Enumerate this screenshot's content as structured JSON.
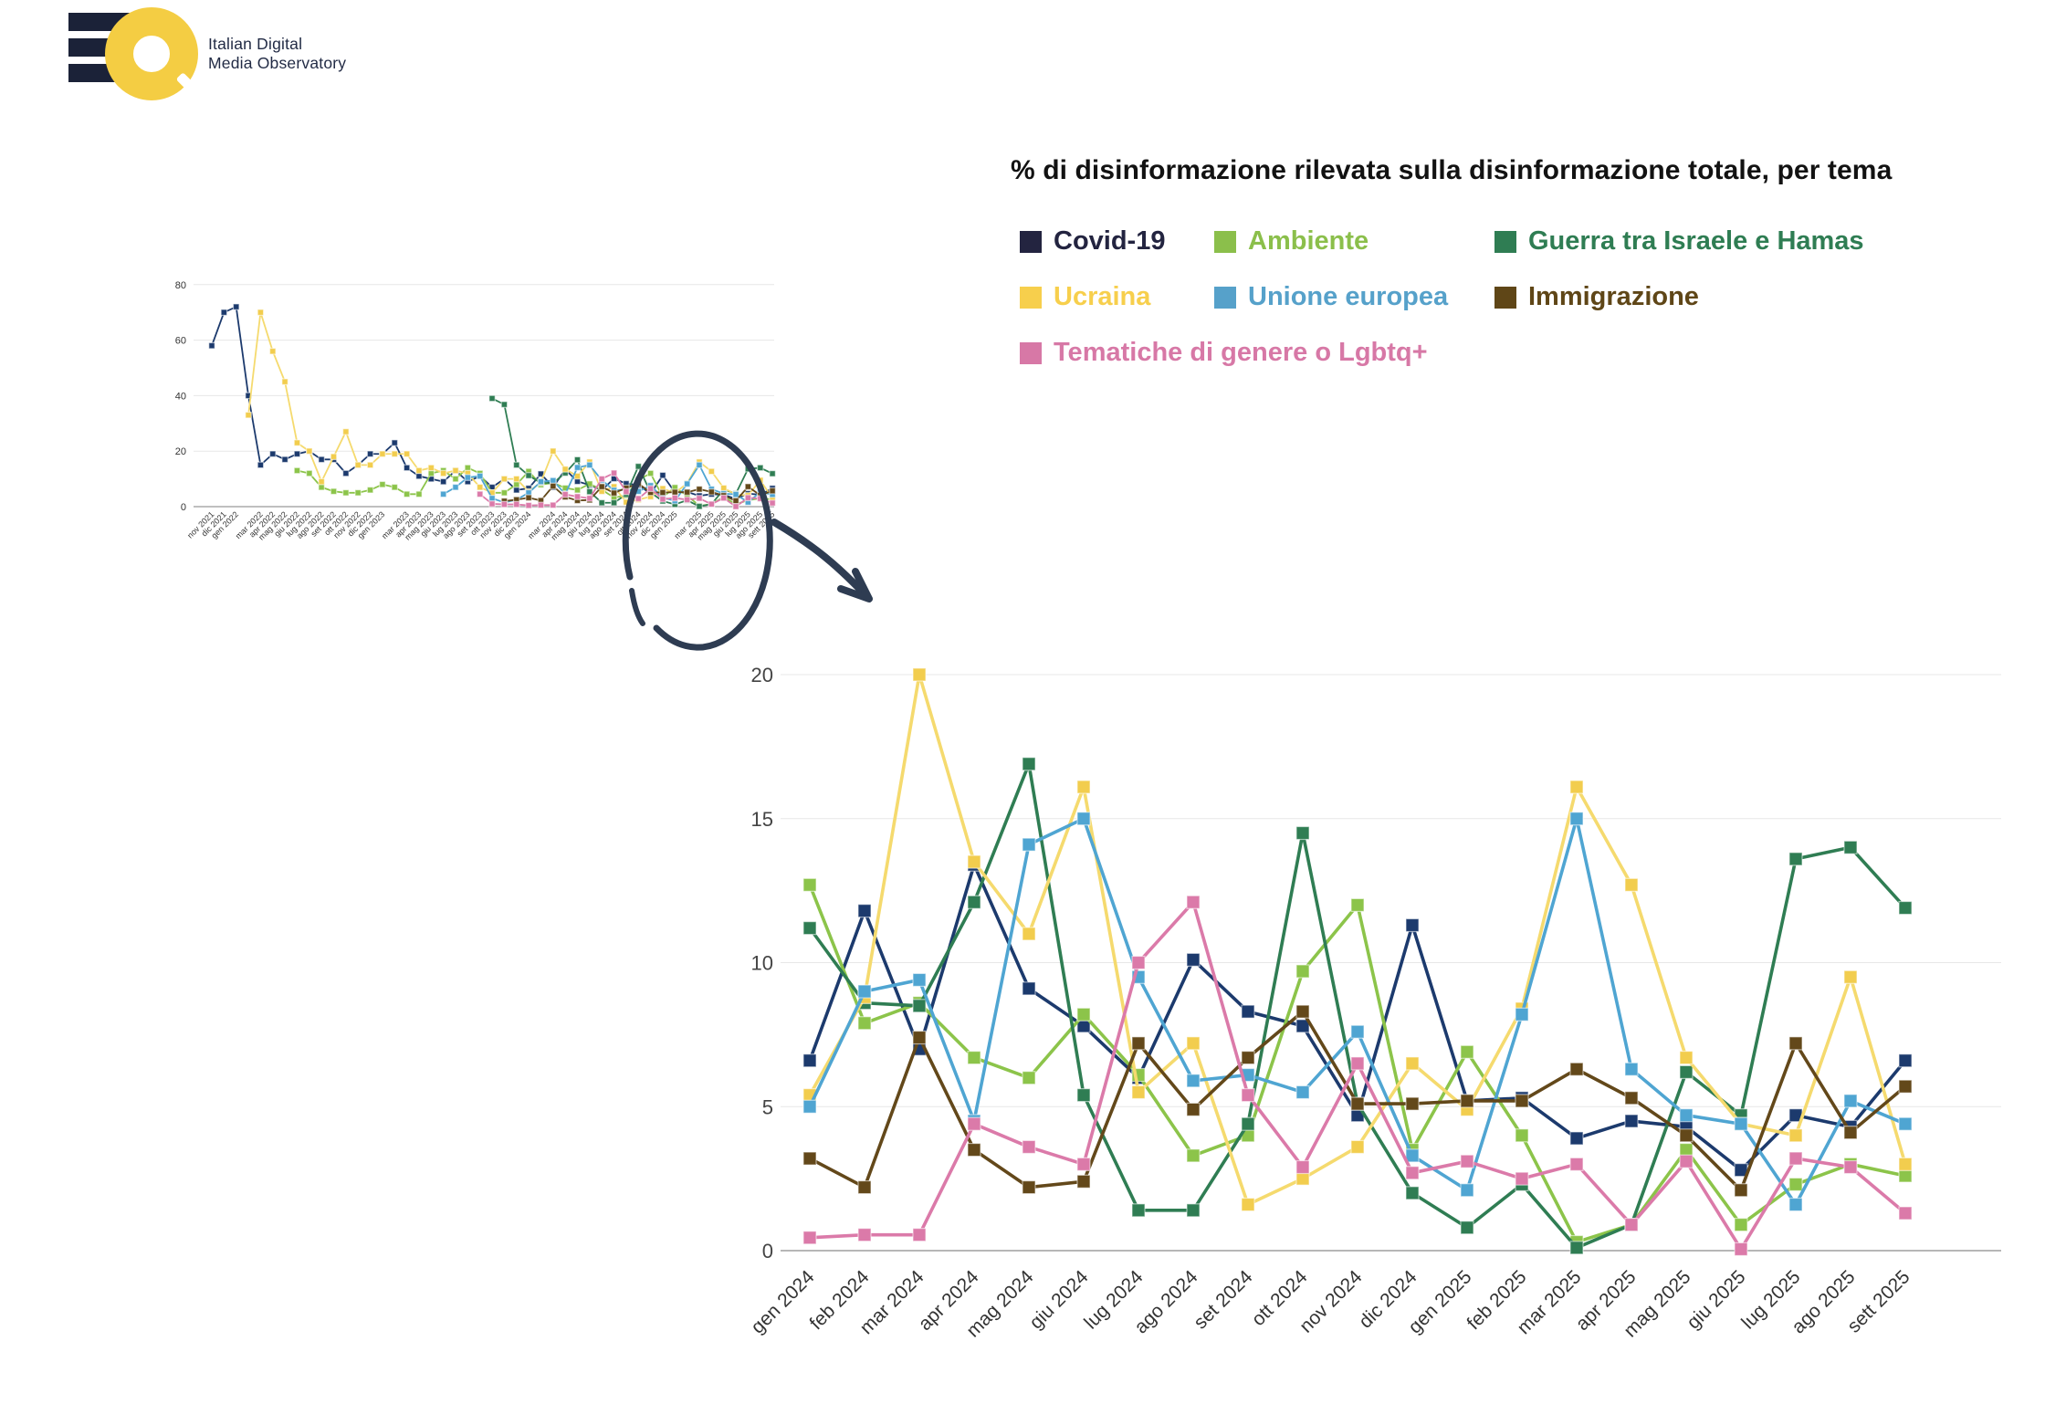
{
  "logo": {
    "line1": "Italian Digital",
    "line2": "Media Observatory"
  },
  "chart_data": {
    "type": "line",
    "title": "% di disinformazione rilevata sulla disinformazione totale, per tema",
    "legend_position": "top-right",
    "grid": "horizontal-only",
    "detail": {
      "categories": [
        "gen 2024",
        "feb 2024",
        "mar 2024",
        "apr 2024",
        "mag 2024",
        "giu 2024",
        "lug 2024",
        "ago 2024",
        "set 2024",
        "ott 2024",
        "nov 2024",
        "dic 2024",
        "gen 2025",
        "feb 2025",
        "mar 2025",
        "apr 2025",
        "mag 2025",
        "giu 2025",
        "lug 2025",
        "ago 2025",
        "sett 2025"
      ],
      "yticks": [
        0,
        5,
        10,
        15,
        20
      ],
      "ylim": [
        0,
        20
      ]
    },
    "overview": {
      "categories": [
        "nov 2021",
        "dic 2021",
        "gen 2022",
        "feb 2022",
        "mar 2022",
        "apr 2022",
        "mag 2022",
        "giu 2022",
        "lug 2022",
        "ago 2022",
        "set 2022",
        "ott 2022",
        "nov 2022",
        "dic 2022",
        "gen 2023",
        "feb 2023",
        "mar 2023",
        "apr 2023",
        "mag 2023",
        "giu 2023",
        "lug 2023",
        "ago 2023",
        "set 2023",
        "ott 2023",
        "nov 2023",
        "dic 2023",
        "gen 2024",
        "feb 2024",
        "mar 2024",
        "apr 2024",
        "mag 2024",
        "giu 2024",
        "lug 2024",
        "ago 2024",
        "set 2024",
        "ott 2024",
        "nov 2024",
        "dic 2024",
        "gen 2025",
        "feb 2025",
        "mar 2025",
        "apr 2025",
        "mag 2025",
        "giu 2025",
        "lug 2025",
        "ago 2025",
        "sett 2025"
      ],
      "tick_labels": [
        "nov 2021",
        "dic 2021",
        "gen 2022",
        "",
        "mar 2022",
        "apr 2022",
        "mag 2022",
        "giu 2022",
        "lug 2022",
        "ago 2022",
        "set 2022",
        "ott 2022",
        "nov 2022",
        "dic 2022",
        "gen 2023",
        "",
        "mar 2023",
        "apr 2023",
        "mag 2023",
        "giu 2023",
        "lug 2023",
        "ago 2023",
        "set 2023",
        "ott 2023",
        "nov 2023",
        "dic 2023",
        "gen 2024",
        "",
        "mar 2024",
        "apr 2024",
        "mag 2024",
        "giu 2024",
        "lug 2024",
        "ago 2024",
        "set 2024",
        "ott 2024",
        "nov 2024",
        "dic 2024",
        "gen 2025",
        "",
        "mar 2025",
        "apr 2025",
        "mag 2025",
        "giu 2025",
        "lug 2025",
        "ago 2025",
        "sett 2025"
      ],
      "yticks": [
        0,
        20,
        40,
        60,
        80
      ],
      "ylim": [
        0,
        80
      ]
    },
    "series": [
      {
        "name": "Covid-19",
        "color": "#232440",
        "line_color": "#1c3a6d",
        "marker_color": "#1c3a6d",
        "overview": [
          58,
          70,
          72,
          40,
          15,
          19,
          17,
          19,
          20,
          17,
          17,
          12,
          15,
          19,
          19,
          23,
          14,
          11,
          10,
          9,
          13,
          9,
          11,
          7,
          10,
          6,
          6.6,
          11.8,
          7,
          13.4,
          9.1,
          7.8,
          6,
          10.1,
          8.3,
          7.8,
          4.7,
          11.3,
          5.2,
          5.3,
          3.9,
          4.5,
          4.3,
          2.8,
          4.7,
          4.3,
          6.6
        ],
        "detail": [
          6.6,
          11.8,
          7,
          13.4,
          9.1,
          7.8,
          6,
          10.1,
          8.3,
          7.8,
          4.7,
          11.3,
          5.2,
          5.3,
          3.9,
          4.5,
          4.3,
          2.8,
          4.7,
          4.3,
          6.6
        ]
      },
      {
        "name": "Ambiente",
        "color": "#8bbf4b",
        "line_color": "#8cc44a",
        "marker_color": "#8cc44a",
        "overview": [
          null,
          null,
          null,
          null,
          null,
          null,
          null,
          13,
          12,
          7,
          5.5,
          5,
          5,
          6,
          8,
          7,
          4.5,
          4.5,
          12,
          13,
          10,
          14,
          12,
          5,
          5,
          8,
          12.7,
          7.9,
          8.6,
          6.7,
          6,
          8.2,
          6.1,
          3.3,
          4,
          9.7,
          12,
          3.5,
          6.9,
          4,
          0.3,
          0.9,
          3.5,
          0.9,
          2.3,
          3,
          2.6
        ],
        "detail": [
          12.7,
          7.9,
          8.6,
          6.7,
          6,
          8.2,
          6.1,
          3.3,
          4,
          9.7,
          12,
          3.5,
          6.9,
          4,
          0.3,
          0.9,
          3.5,
          0.9,
          2.3,
          3,
          2.6
        ]
      },
      {
        "name": "Guerra tra Israele e Hamas",
        "color": "#2f7d53",
        "line_color": "#2f7d53",
        "marker_color": "#2f7d53",
        "overview": [
          null,
          null,
          null,
          null,
          null,
          null,
          null,
          null,
          null,
          null,
          null,
          null,
          null,
          null,
          null,
          null,
          null,
          null,
          null,
          null,
          null,
          null,
          null,
          39,
          36.8,
          15,
          11.2,
          8.6,
          8.5,
          12.1,
          16.9,
          5.4,
          1.4,
          1.4,
          4.4,
          14.5,
          5.1,
          2,
          0.8,
          2.3,
          0.1,
          0.9,
          6.2,
          4.7,
          13.6,
          14,
          11.9
        ],
        "detail": [
          11.2,
          8.6,
          8.5,
          12.1,
          16.9,
          5.4,
          1.4,
          1.4,
          4.4,
          14.5,
          5.1,
          2,
          0.8,
          2.3,
          0.1,
          0.9,
          6.2,
          4.7,
          13.6,
          14,
          11.9
        ]
      },
      {
        "name": "Ucraina",
        "color": "#f7cf4c",
        "line_color": "#f5da6e",
        "marker_color": "#f2cd4e",
        "overview": [
          null,
          null,
          null,
          33,
          70,
          56,
          45,
          23,
          20,
          9,
          18,
          27,
          15,
          15,
          19,
          19,
          19,
          13,
          14,
          12,
          13,
          12,
          7,
          5,
          10,
          10,
          5.4,
          8.8,
          20,
          13.5,
          11,
          16.1,
          5.5,
          7.2,
          1.6,
          2.5,
          3.6,
          6.5,
          4.9,
          8.4,
          16.1,
          12.7,
          6.7,
          4.4,
          4,
          9.5,
          3
        ],
        "detail": [
          5.4,
          8.8,
          20,
          13.5,
          11,
          16.1,
          5.5,
          7.2,
          1.6,
          2.5,
          3.6,
          6.5,
          4.9,
          8.4,
          16.1,
          12.7,
          6.7,
          4.4,
          4,
          9.5,
          3
        ]
      },
      {
        "name": "Unione europea",
        "color": "#56a1ca",
        "line_color": "#4fa5d2",
        "marker_color": "#4fa5d2",
        "overview": [
          null,
          null,
          null,
          null,
          null,
          null,
          null,
          null,
          null,
          null,
          null,
          null,
          null,
          null,
          null,
          null,
          null,
          null,
          null,
          4.5,
          7,
          10.5,
          11,
          3,
          1.5,
          2.5,
          5,
          9,
          9.4,
          4.5,
          14.1,
          15,
          9.5,
          5.9,
          6.1,
          5.5,
          7.6,
          3.3,
          2.1,
          8.2,
          15,
          6.3,
          4.7,
          4.4,
          1.6,
          5.2,
          4.4
        ],
        "detail": [
          5,
          9,
          9.4,
          4.5,
          14.1,
          15,
          9.5,
          5.9,
          6.1,
          5.5,
          7.6,
          3.3,
          2.1,
          8.2,
          15,
          6.3,
          4.7,
          4.4,
          1.6,
          5.2,
          4.4
        ]
      },
      {
        "name": "Immigrazione",
        "color": "#5f4617",
        "line_color": "#63481a",
        "marker_color": "#63481a",
        "overview": [
          null,
          null,
          null,
          null,
          null,
          null,
          null,
          null,
          null,
          null,
          null,
          null,
          null,
          null,
          null,
          null,
          null,
          null,
          null,
          null,
          null,
          null,
          null,
          null,
          2,
          2.5,
          3.2,
          2.2,
          7.4,
          3.5,
          2.2,
          2.4,
          7.2,
          4.9,
          6.7,
          8.3,
          5.1,
          5.1,
          5.2,
          5.2,
          6.3,
          5.3,
          4,
          2.1,
          7.2,
          4.1,
          5.7
        ],
        "detail": [
          3.2,
          2.2,
          7.4,
          3.5,
          2.2,
          2.4,
          7.2,
          4.9,
          6.7,
          8.3,
          5.1,
          5.1,
          5.2,
          5.2,
          6.3,
          5.3,
          4,
          2.1,
          7.2,
          4.1,
          5.7
        ]
      },
      {
        "name": "Tematiche di genere o Lgbtq+",
        "color": "#d778a6",
        "line_color": "#db7aa9",
        "marker_color": "#db7aa9",
        "overview": [
          null,
          null,
          null,
          null,
          null,
          null,
          null,
          null,
          null,
          null,
          null,
          null,
          null,
          null,
          null,
          null,
          null,
          null,
          null,
          null,
          null,
          null,
          4.5,
          1,
          0.8,
          0.8,
          0.45,
          0.55,
          0.55,
          4.4,
          3.6,
          3,
          10,
          12.1,
          5.4,
          2.9,
          6.5,
          2.7,
          3.1,
          2.5,
          3,
          0.9,
          3.1,
          0.05,
          3.2,
          2.9,
          1.3
        ],
        "detail": [
          0.45,
          0.55,
          0.55,
          4.4,
          3.6,
          3,
          10,
          12.1,
          5.4,
          2.9,
          6.5,
          2.7,
          3.1,
          2.5,
          3,
          0.9,
          3.1,
          0.05,
          3.2,
          2.9,
          1.3
        ]
      }
    ]
  }
}
